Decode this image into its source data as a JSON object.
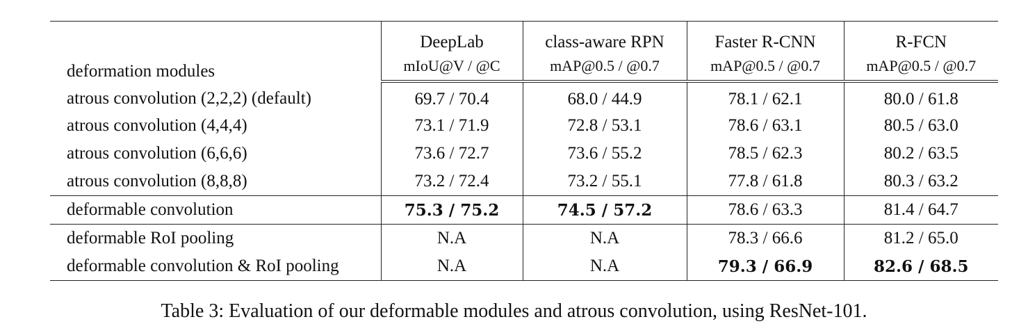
{
  "table": {
    "header": {
      "method_label": "deformation modules",
      "columns": [
        {
          "name": "DeepLab",
          "metric": "mIoU@V / @C"
        },
        {
          "name": "class-aware RPN",
          "metric": "mAP@0.5 / @0.7"
        },
        {
          "name": "Faster R-CNN",
          "metric": "mAP@0.5 / @0.7"
        },
        {
          "name": "R-FCN",
          "metric": "mAP@0.5 / @0.7"
        }
      ]
    },
    "groups": [
      {
        "rows": [
          {
            "method": "atrous convolution (2,2,2) (default)",
            "cells": [
              {
                "v": "69.7 / 70.4",
                "b": false
              },
              {
                "v": "68.0 / 44.9",
                "b": false
              },
              {
                "v": "78.1 / 62.1",
                "b": false
              },
              {
                "v": "80.0 / 61.8",
                "b": false
              }
            ]
          },
          {
            "method": "atrous convolution (4,4,4)",
            "cells": [
              {
                "v": "73.1 / 71.9",
                "b": false
              },
              {
                "v": "72.8 / 53.1",
                "b": false
              },
              {
                "v": "78.6 / 63.1",
                "b": false
              },
              {
                "v": "80.5 / 63.0",
                "b": false
              }
            ]
          },
          {
            "method": "atrous convolution (6,6,6)",
            "cells": [
              {
                "v": "73.6 / 72.7",
                "b": false
              },
              {
                "v": "73.6 / 55.2",
                "b": false
              },
              {
                "v": "78.5 / 62.3",
                "b": false
              },
              {
                "v": "80.2 / 63.5",
                "b": false
              }
            ]
          },
          {
            "method": "atrous convolution (8,8,8)",
            "cells": [
              {
                "v": "73.2 / 72.4",
                "b": false
              },
              {
                "v": "73.2 / 55.1",
                "b": false
              },
              {
                "v": "77.8 / 61.8",
                "b": false
              },
              {
                "v": "80.3 / 63.2",
                "b": false
              }
            ]
          }
        ]
      },
      {
        "rows": [
          {
            "method": "deformable convolution",
            "cells": [
              {
                "v": "75.3 / 75.2",
                "b": true
              },
              {
                "v": "74.5 / 57.2",
                "b": true
              },
              {
                "v": "78.6 / 63.3",
                "b": false
              },
              {
                "v": "81.4 / 64.7",
                "b": false
              }
            ]
          }
        ]
      },
      {
        "rows": [
          {
            "method": "deformable RoI pooling",
            "cells": [
              {
                "v": "N.A",
                "b": false
              },
              {
                "v": "N.A",
                "b": false
              },
              {
                "v": "78.3 / 66.6",
                "b": false
              },
              {
                "v": "81.2 / 65.0",
                "b": false
              }
            ]
          },
          {
            "method": "deformable convolution & RoI pooling",
            "cells": [
              {
                "v": "N.A",
                "b": false
              },
              {
                "v": "N.A",
                "b": false
              },
              {
                "v": "79.3 / 66.9",
                "b": true
              },
              {
                "v": "82.6 / 68.5",
                "b": true
              }
            ]
          }
        ]
      }
    ]
  },
  "caption": "Table 3: Evaluation of our deformable modules and atrous convolution, using ResNet-101."
}
